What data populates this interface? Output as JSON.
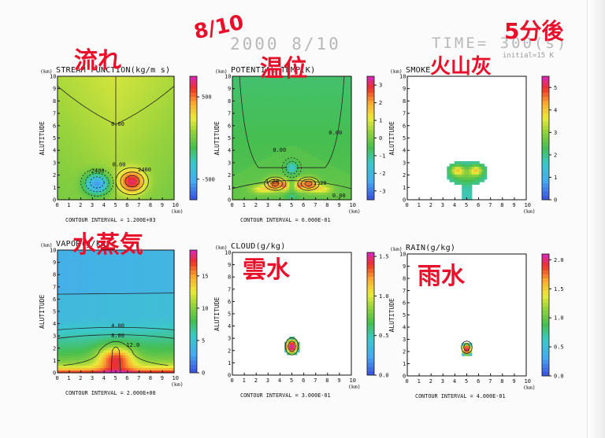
{
  "header": {
    "date": "2000  8/10",
    "time": "TIME=  300(s)",
    "initial": "initial=15 K"
  },
  "annotations": {
    "date_note": "8/10",
    "time_note": "5分後",
    "flow": "流れ",
    "temp": "温位",
    "ash": "火山灰",
    "vapor": "水蒸気",
    "cloud": "雲水",
    "rain": "雨水"
  },
  "common": {
    "ylabel": "ALUTITUDE",
    "yunit": "(km)",
    "xunit": "(km)",
    "xticks": [
      "0",
      "1",
      "2",
      "3",
      "4",
      "5",
      "6",
      "7",
      "8",
      "9",
      "10"
    ],
    "yticks": [
      "0",
      "1",
      "2",
      "3",
      "4",
      "5",
      "6",
      "7",
      "8",
      "9",
      "10"
    ]
  },
  "chart_data": [
    {
      "type": "heatmap",
      "title": "STREAM FUNCTION(kg/m s)",
      "contour_interval": "CONTOUR INTERVAL = 1.200E+03",
      "xlim": [
        0,
        10
      ],
      "ylim": [
        0,
        10
      ],
      "colorbar": {
        "range": [
          -750,
          750
        ],
        "ticks": [
          "500",
          "-500"
        ],
        "tick_values": [
          500,
          -500
        ]
      },
      "contour_labels": [
        "0.00",
        "-2400",
        "2400",
        "0.00"
      ],
      "field": "stream"
    },
    {
      "type": "heatmap",
      "title": "POTENTIAL TEMP(K)",
      "contour_interval": "CONTOUR INTERVAL = 6.000E-01",
      "xlim": [
        0,
        10
      ],
      "ylim": [
        0,
        10
      ],
      "colorbar": {
        "range": [
          -3.5,
          3.5
        ],
        "ticks": [
          "3",
          "2",
          "1",
          "0",
          "-1",
          "-2",
          "-3"
        ],
        "tick_values": [
          3,
          2,
          1,
          0,
          -1,
          -2,
          -3
        ]
      },
      "contour_labels": [
        "0.00",
        "0.00",
        "1.20",
        "1.20",
        "0.00"
      ],
      "field": "theta"
    },
    {
      "type": "heatmap",
      "title": "SMOKE",
      "contour_interval": "",
      "xlim": [
        0,
        10
      ],
      "ylim": [
        0,
        10
      ],
      "colorbar": {
        "range": [
          0,
          5.5
        ],
        "ticks": [
          "5",
          "4",
          "3",
          "2",
          "1",
          "0"
        ],
        "tick_values": [
          5,
          4,
          3,
          2,
          1,
          0
        ]
      },
      "contour_labels": [],
      "field": "smoke"
    },
    {
      "type": "heatmap",
      "title": "VAPOR(g/kg)",
      "contour_interval": "CONTOUR INTERVAL = 2.000E+00",
      "xlim": [
        0,
        10
      ],
      "ylim": [
        0,
        10
      ],
      "colorbar": {
        "range": [
          0,
          19
        ],
        "ticks": [
          "15",
          "10",
          "5",
          "0"
        ],
        "tick_values": [
          15,
          10,
          5,
          0
        ]
      },
      "contour_labels": [
        "4.00",
        "8.00",
        "12.0"
      ],
      "field": "vapor"
    },
    {
      "type": "heatmap",
      "title": "CLOUD(g/kg)",
      "contour_interval": "CONTOUR INTERVAL = 3.000E-01",
      "xlim": [
        0,
        10
      ],
      "ylim": [
        0,
        10
      ],
      "colorbar": {
        "range": [
          0,
          1.55
        ],
        "ticks": [
          "1.5",
          "1.0",
          "0.5",
          "0.0"
        ],
        "tick_values": [
          1.5,
          1.0,
          0.5,
          0.0
        ]
      },
      "contour_labels": [],
      "field": "cloud"
    },
    {
      "type": "heatmap",
      "title": "RAIN(g/kg)",
      "contour_interval": "CONTOUR INTERVAL = 4.000E-01",
      "xlim": [
        0,
        10
      ],
      "ylim": [
        0,
        10
      ],
      "colorbar": {
        "range": [
          0,
          2.1
        ],
        "ticks": [
          "2.0",
          "1.5",
          "1.0",
          "0.5",
          "0.0"
        ],
        "tick_values": [
          2.0,
          1.5,
          1.0,
          0.5,
          0.0
        ]
      },
      "contour_labels": [],
      "field": "rain"
    }
  ]
}
